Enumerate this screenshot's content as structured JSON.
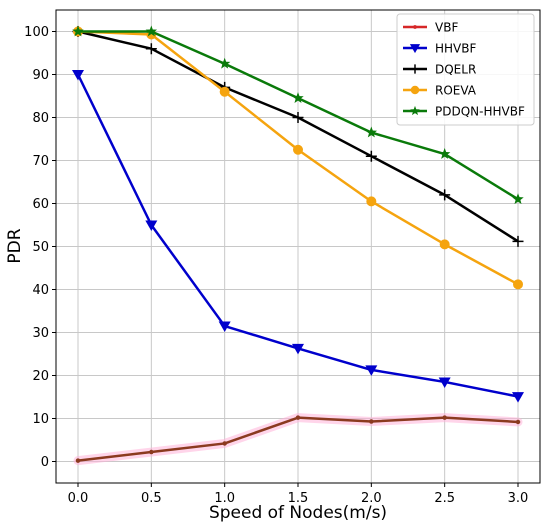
{
  "chart_data": {
    "type": "line",
    "title": "",
    "xlabel": "Speed of Nodes(m/s)",
    "ylabel": "PDR",
    "x": [
      0.0,
      0.5,
      1.0,
      1.5,
      2.0,
      2.5,
      3.0
    ],
    "x_tick_labels": [
      "0.0",
      "0.5",
      "1.0",
      "1.5",
      "2.0",
      "2.5",
      "3.0"
    ],
    "y_tick_labels": [
      "0",
      "10",
      "20",
      "30",
      "40",
      "50",
      "60",
      "70",
      "80",
      "90",
      "100"
    ],
    "xlim": [
      -0.15,
      3.15
    ],
    "ylim": [
      -5,
      105
    ],
    "grid": true,
    "legend_position": "top-right",
    "series": [
      {
        "name": "VBF",
        "color": "#d62728",
        "marker": "dot",
        "values": [
          0.2,
          2.2,
          4.2,
          10.2,
          9.3,
          10.2,
          9.2
        ]
      },
      {
        "name": "HHVBF",
        "color": "#0000cc",
        "marker": "triangle-down",
        "values": [
          90,
          55,
          31.5,
          26.3,
          21.3,
          18.5,
          15.1
        ]
      },
      {
        "name": "DQELR",
        "color": "#000000",
        "marker": "plus",
        "values": [
          100,
          96,
          87,
          80,
          71,
          62,
          51.2
        ]
      },
      {
        "name": "ROEVA",
        "color": "#f5a40f",
        "marker": "circle",
        "values": [
          100,
          99.3,
          86,
          72.5,
          60.5,
          50.5,
          41.2
        ]
      },
      {
        "name": "PDDQN-HHVBF",
        "color": "#0a7a0a",
        "marker": "star",
        "values": [
          100,
          100,
          92.5,
          84.5,
          76.5,
          71.5,
          61
        ]
      }
    ]
  }
}
